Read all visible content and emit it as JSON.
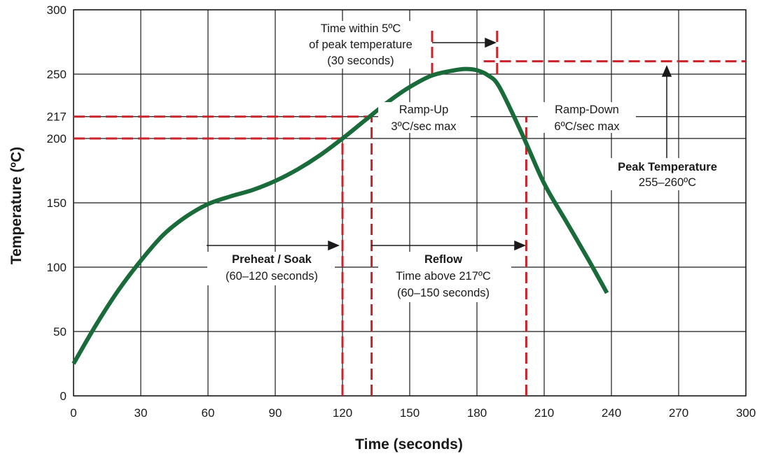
{
  "chart_data": {
    "type": "line",
    "xlabel": "Time (seconds)",
    "ylabel": "Temperature (ºC)",
    "xlim": [
      0,
      300
    ],
    "ylim": [
      0,
      300
    ],
    "xticks": [
      0,
      30,
      60,
      90,
      120,
      150,
      180,
      210,
      240,
      270,
      300
    ],
    "yticks": [
      0,
      50,
      100,
      150,
      200,
      217,
      250,
      300
    ],
    "xtick_labels": [
      "0",
      "30",
      "60",
      "90",
      "120",
      "150",
      "180",
      "210",
      "240",
      "270",
      "300"
    ],
    "ytick_labels": [
      "0",
      "50",
      "100",
      "150",
      "200",
      "217",
      "250",
      "300"
    ],
    "grid": true,
    "series": [
      {
        "color": "#1a6b3a",
        "x": [
          0,
          10,
          20,
          30,
          40,
          50,
          60,
          70,
          80,
          90,
          100,
          110,
          120,
          130,
          140,
          150,
          160,
          170,
          175,
          180,
          185,
          190,
          200,
          210,
          220,
          230,
          238
        ],
        "y": [
          25,
          55,
          82,
          105,
          125,
          139,
          149,
          155,
          160,
          167,
          176,
          187,
          200,
          214,
          228,
          240,
          249,
          253,
          254,
          253,
          249,
          240,
          204,
          165,
          135,
          105,
          80
        ]
      }
    ],
    "reference_lines": [
      {
        "axis": "y",
        "value": 200,
        "from_x": 0,
        "to_x": 120
      },
      {
        "axis": "y",
        "value": 217,
        "from_x": 0,
        "to_x": 133
      },
      {
        "axis": "x",
        "value": 120,
        "from_y": 0,
        "to_y": 200
      },
      {
        "axis": "x",
        "value": 133,
        "from_y": 0,
        "to_y": 217
      },
      {
        "axis": "x",
        "value": 202,
        "from_y": 0,
        "to_y": 217
      },
      {
        "axis": "x",
        "value": 160,
        "from_y": 250,
        "to_y": 285
      },
      {
        "axis": "x",
        "value": 189,
        "from_y": 250,
        "to_y": 285
      },
      {
        "axis": "y",
        "value": 260,
        "from_x": 183,
        "to_x": 300
      }
    ],
    "reference_color": "#cc2229",
    "annotations": {
      "preheat": {
        "title": "Preheat / Soak",
        "detail": "(60–120 seconds)"
      },
      "reflow": {
        "title": "Reflow",
        "detail1": "Time above 217ºC",
        "detail2": "(60–150 seconds)"
      },
      "ramp_up": {
        "line1": "Ramp-Up",
        "line2": "3ºC/sec max"
      },
      "ramp_down": {
        "line1": "Ramp-Down",
        "line2": "6ºC/sec max"
      },
      "peak": {
        "title": "Peak Temperature",
        "detail": "255–260ºC"
      },
      "time_within": {
        "line1": "Time within 5ºC",
        "line2": "of peak temperature",
        "line3": "(30 seconds)"
      }
    }
  }
}
